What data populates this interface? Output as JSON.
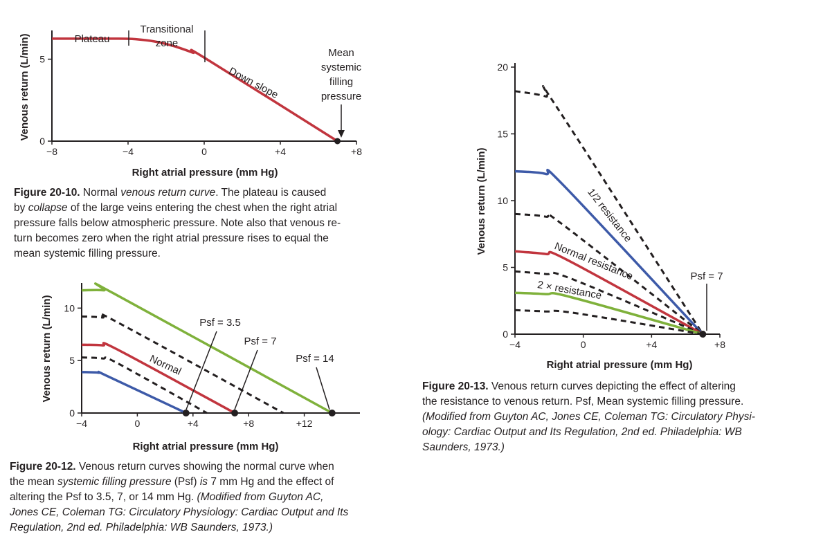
{
  "colors": {
    "red": "#c1353e",
    "blue": "#3d5aa8",
    "green": "#7fb13b",
    "black": "#231f20"
  },
  "chart_data": [
    {
      "type": "line",
      "xlabel": "Right atrial pressure (mm Hg)",
      "ylabel": "Venous return (L/min)",
      "xlim": [
        -8,
        8
      ],
      "ylim": [
        0,
        6.5
      ],
      "xticks": [
        -8,
        -4,
        0,
        4,
        8
      ],
      "xtick_labels": [
        "−8",
        "−4",
        "0",
        "+4",
        "+8"
      ],
      "yticks": [
        0,
        5
      ],
      "ytick_labels": [
        "0",
        "5"
      ],
      "series": [
        {
          "color": "red",
          "style": "solid",
          "x": [
            -8,
            -4.5,
            -3.6,
            -2.6,
            -1.6,
            -0.6,
            0,
            7
          ],
          "y": [
            6.25,
            6.25,
            6.22,
            6.08,
            5.8,
            5.4,
            5.1,
            0
          ]
        }
      ],
      "annotations": [
        {
          "text": "Plateau"
        },
        {
          "text": "Transitional zone",
          "lines": [
            "Transitional",
            "zone"
          ]
        },
        {
          "text": "Down slope"
        },
        {
          "text": "Mean systemic filling pressure",
          "lines": [
            "Mean",
            "systemic",
            "filling",
            "pressure"
          ]
        }
      ],
      "endpoint": {
        "x": 7,
        "y": 0
      }
    },
    {
      "type": "line",
      "xlabel": "Right atrial pressure (mm Hg)",
      "ylabel": "Venous return (L/min)",
      "xlim": [
        -4,
        16
      ],
      "ylim": [
        0,
        12
      ],
      "xticks": [
        -4,
        0,
        4,
        8,
        12
      ],
      "xtick_labels": [
        "−4",
        "0",
        "+4",
        "+8",
        "+12"
      ],
      "yticks": [
        0,
        5,
        10
      ],
      "ytick_labels": [
        "0",
        "5",
        "10"
      ],
      "series": [
        {
          "color": "green",
          "style": "solid",
          "x": [
            -4,
            -2.4,
            -1.7,
            14
          ],
          "y": [
            11.7,
            11.7,
            11.4,
            0
          ]
        },
        {
          "color": "black",
          "style": "dashed",
          "x": [
            -4,
            -2.5,
            -1.5,
            10.5
          ],
          "y": [
            9.2,
            9.1,
            8.7,
            0
          ]
        },
        {
          "name": "Normal",
          "color": "red",
          "style": "solid",
          "x": [
            -4,
            -2.5,
            -1.5,
            7
          ],
          "y": [
            6.5,
            6.45,
            6.1,
            0
          ]
        },
        {
          "color": "black",
          "style": "dashed",
          "x": [
            -4,
            -2.5,
            -1.5,
            5
          ],
          "y": [
            5.3,
            5.2,
            4.8,
            0
          ]
        },
        {
          "color": "blue",
          "style": "solid",
          "x": [
            -4,
            -2.8,
            -2.2,
            3.5
          ],
          "y": [
            3.9,
            3.85,
            3.55,
            0
          ]
        }
      ],
      "annotations": [
        {
          "text": "Psf = 3.5"
        },
        {
          "text": "Psf = 7"
        },
        {
          "text": "Psf = 14"
        }
      ],
      "endpoints": [
        {
          "x": 3.5,
          "y": 0
        },
        {
          "x": 7,
          "y": 0
        },
        {
          "x": 14,
          "y": 0
        }
      ]
    },
    {
      "type": "line",
      "xlabel": "Right atrial pressure (mm Hg)",
      "ylabel": "Venous return (L/min)",
      "xlim": [
        -4,
        8
      ],
      "ylim": [
        0,
        20
      ],
      "xticks": [
        -4,
        0,
        4,
        8
      ],
      "xtick_labels": [
        "−4",
        "0",
        "+4",
        "+8"
      ],
      "yticks": [
        0,
        5,
        10,
        15,
        20
      ],
      "ytick_labels": [
        "0",
        "5",
        "10",
        "15",
        "20"
      ],
      "series": [
        {
          "color": "black",
          "style": "dashed",
          "x": [
            -4,
            -2.2,
            -1.6,
            7
          ],
          "y": [
            18.2,
            17.8,
            17.1,
            0
          ]
        },
        {
          "name": "1/2 resistance",
          "color": "blue",
          "style": "solid",
          "x": [
            -4,
            -2.2,
            -1.2,
            7
          ],
          "y": [
            12.2,
            12.0,
            11.2,
            0
          ]
        },
        {
          "color": "black",
          "style": "dashed",
          "x": [
            -4,
            -2.2,
            -1.2,
            7
          ],
          "y": [
            9.0,
            8.8,
            8.2,
            0
          ]
        },
        {
          "name": "Normal resistance",
          "color": "red",
          "style": "solid",
          "x": [
            -4,
            -2.2,
            -1.0,
            7
          ],
          "y": [
            6.2,
            6.0,
            5.6,
            0
          ]
        },
        {
          "color": "black",
          "style": "dashed",
          "x": [
            -4,
            -2.2,
            -0.8,
            7
          ],
          "y": [
            4.7,
            4.5,
            4.2,
            0
          ]
        },
        {
          "name": "2 × resistance",
          "color": "green",
          "style": "solid",
          "x": [
            -4,
            -2.2,
            -0.8,
            7
          ],
          "y": [
            3.1,
            3.0,
            2.8,
            0
          ]
        },
        {
          "color": "black",
          "style": "dashed",
          "x": [
            -4,
            -2.2,
            -0.6,
            7
          ],
          "y": [
            1.8,
            1.7,
            1.6,
            0
          ]
        }
      ],
      "annotations": [
        {
          "text": "Psf = 7"
        }
      ],
      "endpoint": {
        "x": 7,
        "y": 0
      }
    }
  ],
  "captions": {
    "fig1": {
      "label": "Figure 20-10.",
      "lines": [
        [
          {
            "t": "Figure 20-10.",
            "b": true
          },
          {
            "t": " Normal "
          },
          {
            "t": "venous return curve",
            "i": true
          },
          {
            "t": ". The plateau is caused"
          }
        ],
        [
          {
            "t": "by "
          },
          {
            "t": "collapse",
            "i": true
          },
          {
            "t": " of the large veins entering the chest when the right atrial"
          }
        ],
        [
          {
            "t": "pressure falls below atmospheric pressure. Note also that venous re-"
          }
        ],
        [
          {
            "t": "turn becomes zero when the right atrial pressure rises to equal the"
          }
        ],
        [
          {
            "t": "mean systemic filling pressure."
          }
        ]
      ]
    },
    "fig2": {
      "label": "Figure 20-12.",
      "lines": [
        [
          {
            "t": "Figure 20-12.",
            "b": true
          },
          {
            "t": " Venous return curves showing the normal curve when"
          }
        ],
        [
          {
            "t": "the mean "
          },
          {
            "t": "systemic filling pressure",
            "i": true
          },
          {
            "t": " (Psf) "
          },
          {
            "t": "is",
            "i": true
          },
          {
            "t": " 7 mm Hg and the effect of"
          }
        ],
        [
          {
            "t": "altering the Psf to 3.5, 7, or 14 mm Hg. "
          },
          {
            "t": "(Modified from Guyton AC,",
            "i": true
          }
        ],
        [
          {
            "t": "Jones CE, Coleman TG: Circulatory Physiology: Cardiac Output and Its",
            "i": true
          }
        ],
        [
          {
            "t": "Regulation, 2nd ed. Philadelphia: WB Saunders, 1973.)",
            "i": true
          }
        ]
      ]
    },
    "fig3": {
      "label": "Figure 20-13.",
      "lines": [
        [
          {
            "t": "Figure 20-13.",
            "b": true
          },
          {
            "t": " Venous return curves depicting the effect of altering"
          }
        ],
        [
          {
            "t": "the resistance to venous return. Psf, Mean systemic filling pressure."
          }
        ],
        [
          {
            "t": "(Modified from Guyton AC, Jones CE, Coleman TG: Circulatory Physi-",
            "i": true
          }
        ],
        [
          {
            "t": "ology: Cardiac Output and Its Regulation, 2nd ed. Philadelphia: WB",
            "i": true
          }
        ],
        [
          {
            "t": "Saunders, 1973.)",
            "i": true
          }
        ]
      ]
    }
  }
}
